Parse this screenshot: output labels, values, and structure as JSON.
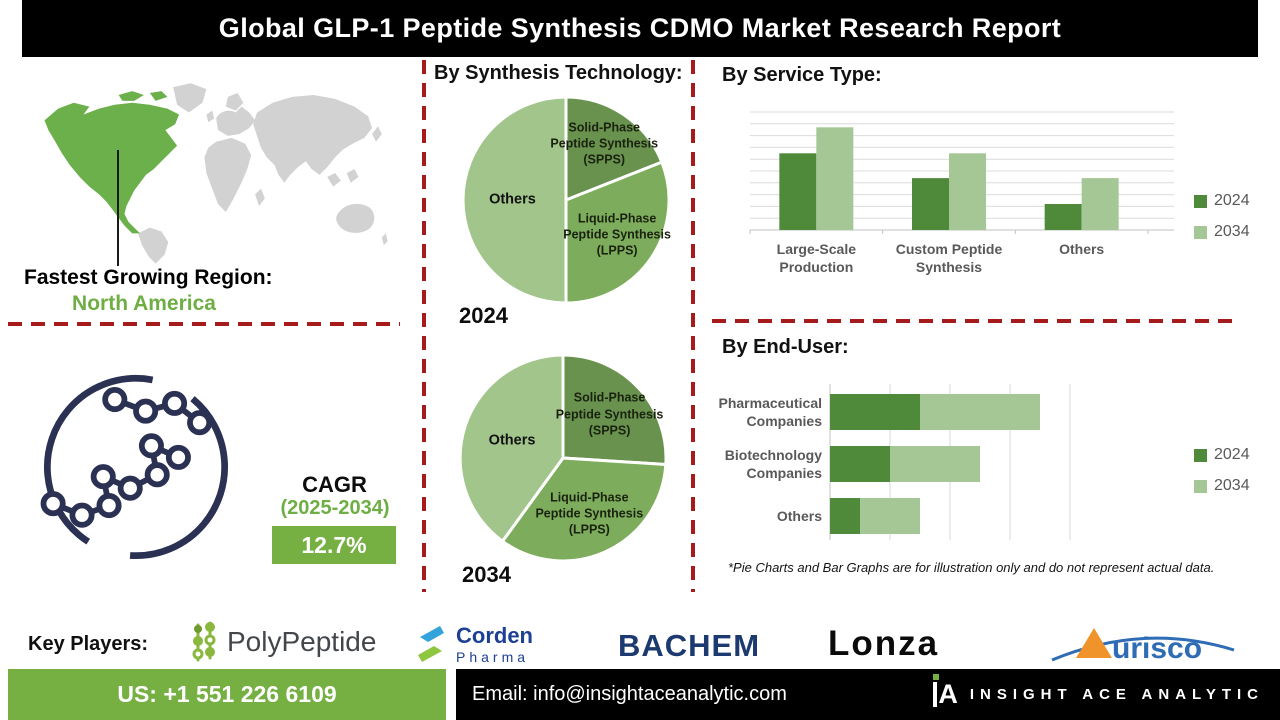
{
  "title": "Global GLP-1 Peptide Synthesis CDMO Market Research Report",
  "region": {
    "heading": "Fastest Growing Region:",
    "value": "North America"
  },
  "cagr": {
    "label": "CAGR",
    "period": "(2025-2034)",
    "value": "12.7%"
  },
  "footnote": "*Pie Charts and Bar Graphs are for illustration only and do not represent actual data.",
  "key_players": {
    "heading": "Key Players:",
    "players": [
      "PolyPeptide",
      "Corden Pharma",
      "BACHEM",
      "Lonza",
      "Aurisco"
    ]
  },
  "logos": {
    "polypeptide": "PolyPeptide",
    "corden_top": "Corden",
    "corden_bottom": "Pharma",
    "bachem": "BACHEM",
    "lonza": "Lonza",
    "aurisco": "urisco",
    "insight_icon": "A"
  },
  "footer": {
    "phone": "US: +1 551 226 6109",
    "email": "Email: info@insightaceanalytic.com",
    "brand": "INSIGHT ACE ANALYTIC"
  },
  "colors": {
    "accent_green": "#76b043",
    "map_green": "#6cb04b",
    "dark_green": "#4f8a3a",
    "light_green": "#a5c795",
    "pie_spps": "#68924e",
    "pie_lpps": "#7dad5c",
    "pie_others": "#a2c58b",
    "dash_red": "#a61c1c",
    "molecule_navy": "#2b3153"
  },
  "chart_data": [
    {
      "type": "pie",
      "title": "By Synthesis Technology:",
      "year": "2024",
      "slices": [
        {
          "label": "Solid-Phase Peptide Synthesis (SPPS)",
          "value": 19,
          "color": "#68924e"
        },
        {
          "label": "Liquid-Phase Peptide Synthesis (LPPS)",
          "value": 31,
          "color": "#7dad5c"
        },
        {
          "label": "Others",
          "value": 50,
          "color": "#a2c58b"
        }
      ]
    },
    {
      "type": "pie",
      "year": "2034",
      "slices": [
        {
          "label": "Solid-Phase Peptide Synthesis (SPPS)",
          "value": 26,
          "color": "#68924e"
        },
        {
          "label": "Liquid-Phase Peptide Synthesis (LPPS)",
          "value": 34,
          "color": "#7dad5c"
        },
        {
          "label": "Others",
          "value": 40,
          "color": "#a2c58b"
        }
      ]
    },
    {
      "type": "bar",
      "title": "By Service Type:",
      "categories": [
        "Large-Scale Production",
        "Custom Peptide Synthesis",
        "Others"
      ],
      "series": [
        {
          "name": "2024",
          "color": "#4f8a3a",
          "values": [
            6.5,
            4.4,
            2.2
          ]
        },
        {
          "name": "2034",
          "color": "#a5c795",
          "values": [
            8.7,
            6.5,
            4.4
          ]
        }
      ],
      "ylim": [
        0,
        10
      ],
      "grid": "horizontal",
      "legend_position": "right"
    },
    {
      "type": "stacked-hbar",
      "title": "By End-User:",
      "categories": [
        "Pharmaceutical Companies",
        "Biotechnology Companies",
        "Others"
      ],
      "series": [
        {
          "name": "2024",
          "color": "#4f8a3a",
          "values": [
            15,
            10,
            5
          ]
        },
        {
          "name": "2034",
          "color": "#a5c795",
          "values": [
            20,
            15,
            10
          ]
        }
      ],
      "xlim": [
        0,
        40
      ],
      "grid": "vertical",
      "legend_position": "right"
    }
  ]
}
